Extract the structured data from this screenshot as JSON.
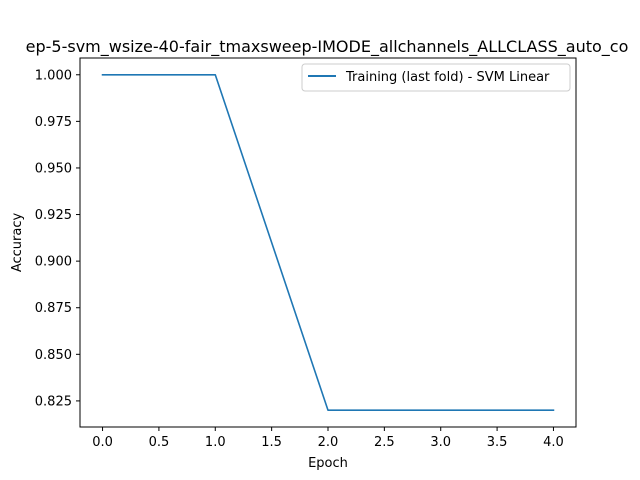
{
  "chart_data": {
    "type": "line",
    "title": "ep-5-svm_wsize-40-fair_tmaxsweep-IMODE_allchannels_ALLCLASS_auto_co",
    "xlabel": "Epoch",
    "ylabel": "Accuracy",
    "xlim": [
      -0.2,
      4.2
    ],
    "ylim": [
      0.811,
      1.009
    ],
    "x_ticks": [
      0.0,
      0.5,
      1.0,
      1.5,
      2.0,
      2.5,
      3.0,
      3.5,
      4.0
    ],
    "x_tick_labels": [
      "0.0",
      "0.5",
      "1.0",
      "1.5",
      "2.0",
      "2.5",
      "3.0",
      "3.5",
      "4.0"
    ],
    "y_ticks": [
      0.825,
      0.85,
      0.875,
      0.9,
      0.925,
      0.95,
      0.975,
      1.0
    ],
    "y_tick_labels": [
      "0.825",
      "0.850",
      "0.875",
      "0.900",
      "0.925",
      "0.950",
      "0.975",
      "1.000"
    ],
    "grid": false,
    "legend_position": "upper right",
    "series": [
      {
        "name": "Training (last fold) - SVM Linear",
        "color": "#1f77b4",
        "x": [
          0,
          1,
          2,
          3,
          4
        ],
        "y": [
          1.0,
          1.0,
          0.82,
          0.82,
          0.82
        ]
      }
    ]
  }
}
